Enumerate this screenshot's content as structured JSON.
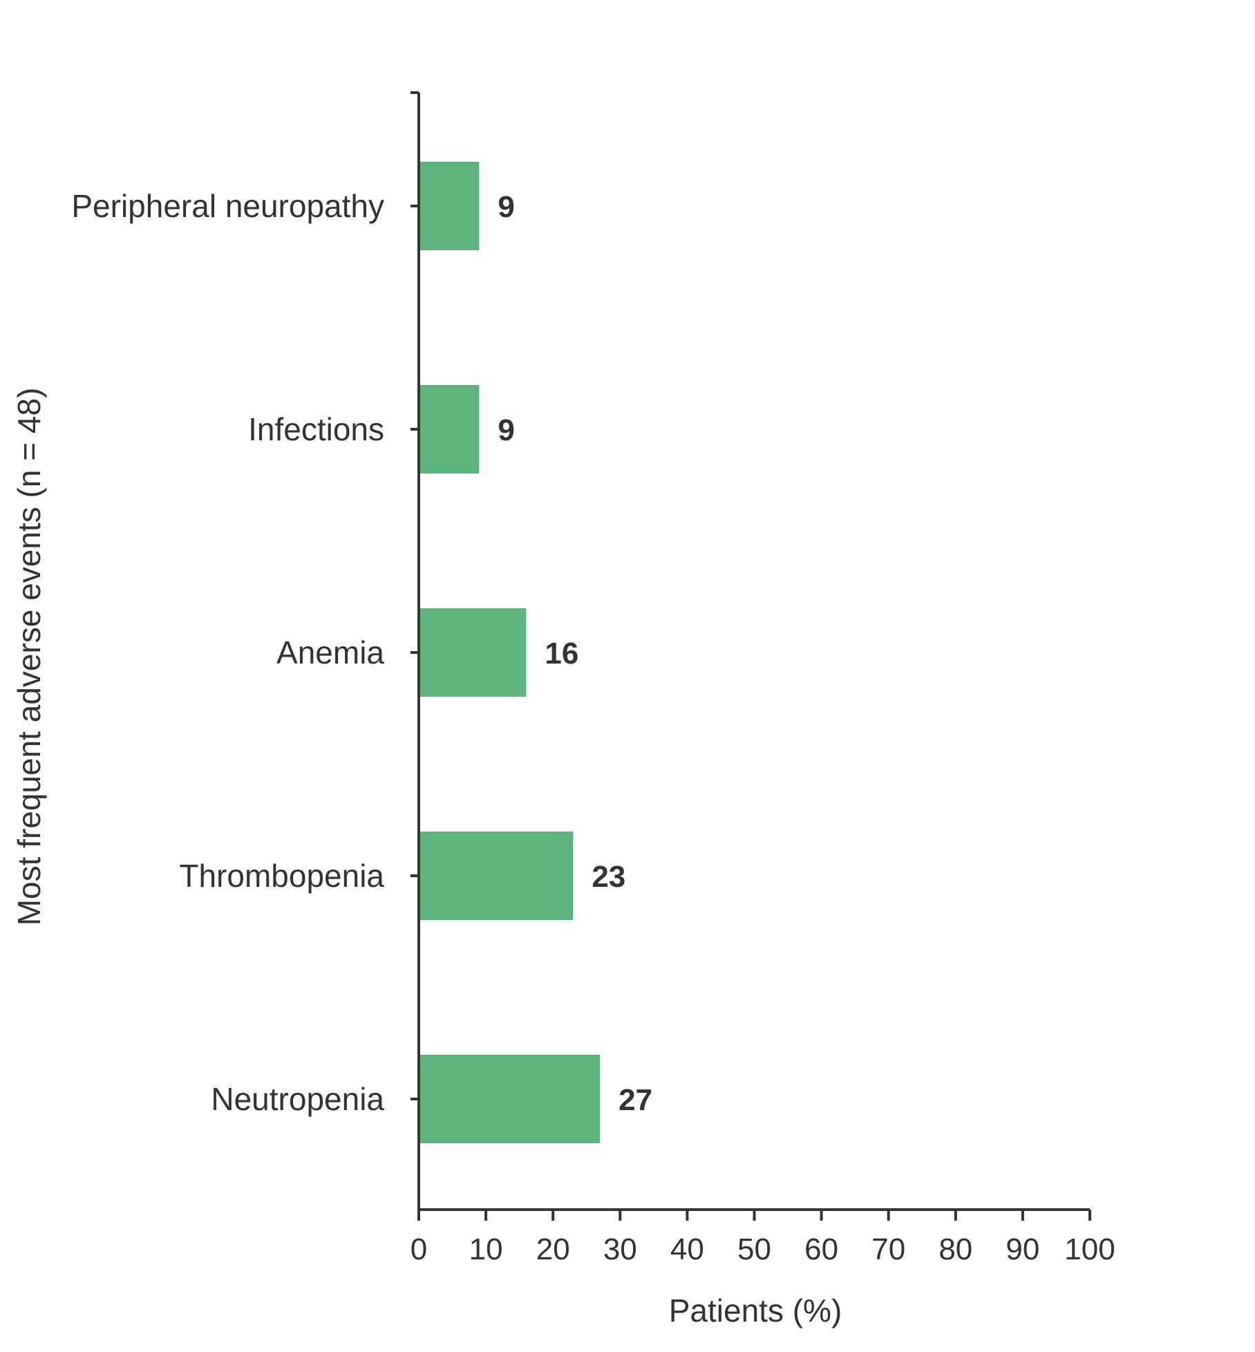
{
  "chart_data": {
    "type": "bar",
    "orientation": "horizontal",
    "categories": [
      "Peripheral neuropathy",
      "Infections",
      "Anemia",
      "Thrombopenia",
      "Neutropenia"
    ],
    "values": [
      9,
      9,
      16,
      23,
      27
    ],
    "data_labels": [
      "9",
      "9",
      "16",
      "23",
      "27"
    ],
    "xlabel": "Patients (%)",
    "ylabel": "Most frequent adverse events (n = 48)",
    "xlim": [
      0,
      100
    ],
    "xticks": [
      0,
      10,
      20,
      30,
      40,
      50,
      60,
      70,
      80,
      90,
      100
    ],
    "grid": false,
    "bar_color": "#5cb37b",
    "axis_color": "#333333"
  }
}
